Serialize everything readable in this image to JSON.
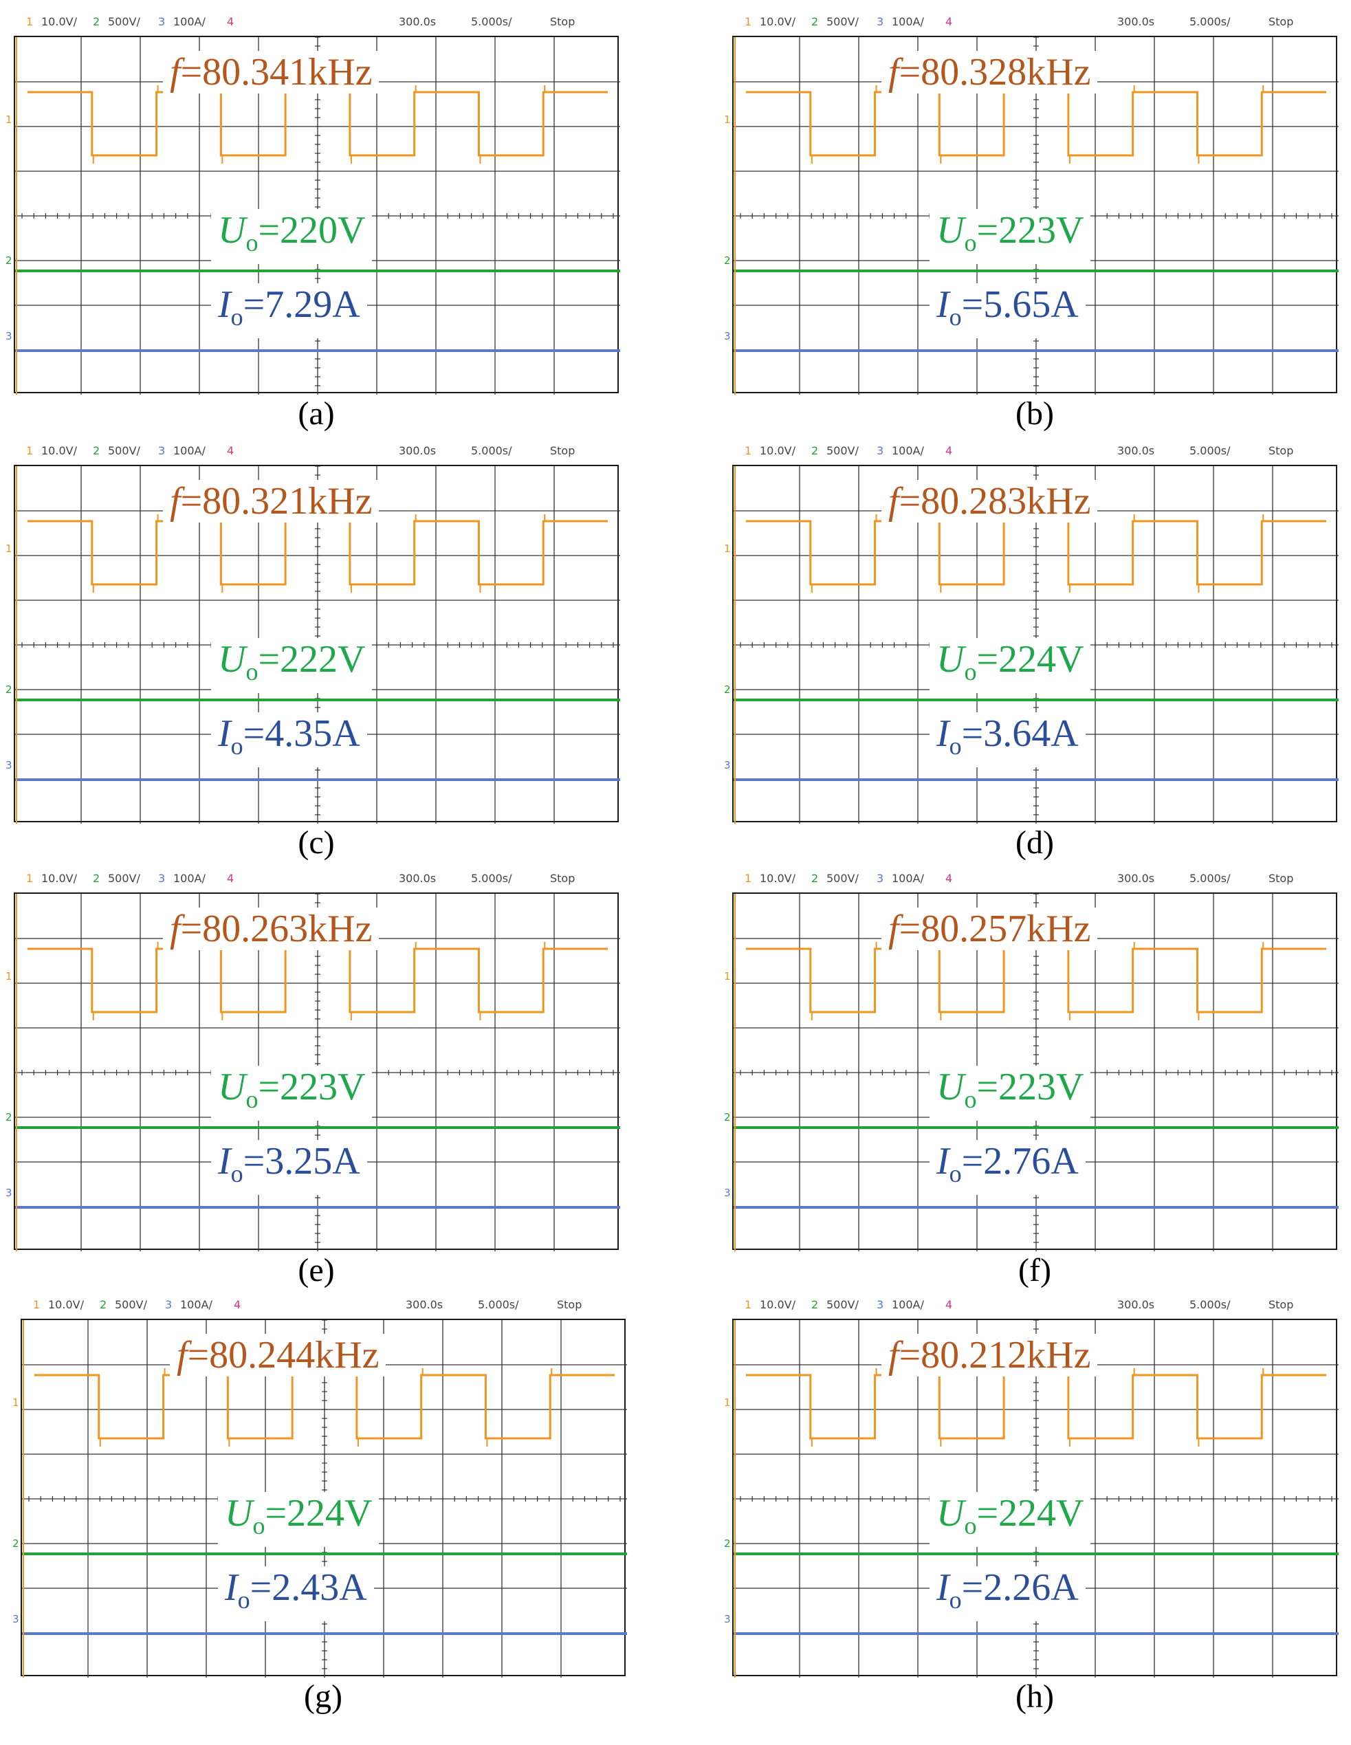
{
  "status_bar": {
    "ch1_num": "1",
    "ch1_scale": "10.0V/",
    "ch2_num": "2",
    "ch2_scale": "500V/",
    "ch3_num": "3",
    "ch3_scale": "100A/",
    "ch4_num": "4",
    "offset": "300.0s",
    "timebase": "5.000s/",
    "mode": "Stop"
  },
  "colors": {
    "ch1": "#f0951f",
    "ch2": "#22a33a",
    "ch3": "#5b79c9",
    "ch4": "#e0308a",
    "freq_label": "#b5561c",
    "volt_label": "#1fa84a",
    "curr_label": "#2b4e9a"
  },
  "symbols": {
    "f": "f",
    "u": "U",
    "i": "I",
    "sub": "o"
  },
  "panels": [
    {
      "caption": "(a)",
      "freq": "=80.341kHz",
      "volt": "=220V",
      "curr": "=7.29A"
    },
    {
      "caption": "(b)",
      "freq": "=80.328kHz",
      "volt": "=223V",
      "curr": "=5.65A"
    },
    {
      "caption": "(c)",
      "freq": "=80.321kHz",
      "volt": "=222V",
      "curr": "=4.35A"
    },
    {
      "caption": "(d)",
      "freq": "=80.283kHz",
      "volt": "=224V",
      "curr": "=3.64A"
    },
    {
      "caption": "(e)",
      "freq": "=80.263kHz",
      "volt": "=223V",
      "curr": "=3.25A"
    },
    {
      "caption": "(f)",
      "freq": "=80.257kHz",
      "volt": "=223V",
      "curr": "=2.76A"
    },
    {
      "caption": "(g)",
      "freq": "=80.244kHz",
      "volt": "=224V",
      "curr": "=2.43A"
    },
    {
      "caption": "(h)",
      "freq": "=80.212kHz",
      "volt": "=224V",
      "curr": "=2.26A"
    }
  ],
  "chart_data": [
    {
      "type": "line",
      "panel": "(a)",
      "series": [
        {
          "name": "f=80.341kHz",
          "values": [
            1,
            0,
            1,
            0,
            1,
            0,
            1,
            0,
            1
          ]
        },
        {
          "name": "Uo=220V",
          "values": [
            220
          ]
        },
        {
          "name": "Io=7.29A",
          "values": [
            7.29
          ]
        }
      ]
    },
    {
      "type": "line",
      "panel": "(b)",
      "series": [
        {
          "name": "f=80.328kHz",
          "values": [
            1,
            0,
            1,
            0,
            1,
            0,
            1,
            0,
            1
          ]
        },
        {
          "name": "Uo=223V",
          "values": [
            223
          ]
        },
        {
          "name": "Io=5.65A",
          "values": [
            5.65
          ]
        }
      ]
    },
    {
      "type": "line",
      "panel": "(c)",
      "series": [
        {
          "name": "f=80.321kHz",
          "values": [
            1,
            0,
            1,
            0,
            1,
            0,
            1,
            0,
            1
          ]
        },
        {
          "name": "Uo=222V",
          "values": [
            222
          ]
        },
        {
          "name": "Io=4.35A",
          "values": [
            4.35
          ]
        }
      ]
    },
    {
      "type": "line",
      "panel": "(d)",
      "series": [
        {
          "name": "f=80.283kHz",
          "values": [
            1,
            0,
            1,
            0,
            1,
            0,
            1,
            0,
            1
          ]
        },
        {
          "name": "Uo=224V",
          "values": [
            224
          ]
        },
        {
          "name": "Io=3.64A",
          "values": [
            3.64
          ]
        }
      ]
    },
    {
      "type": "line",
      "panel": "(e)",
      "series": [
        {
          "name": "f=80.263kHz",
          "values": [
            1,
            0,
            1,
            0,
            1,
            0,
            1,
            0,
            1
          ]
        },
        {
          "name": "Uo=223V",
          "values": [
            223
          ]
        },
        {
          "name": "Io=3.25A",
          "values": [
            3.25
          ]
        }
      ]
    },
    {
      "type": "line",
      "panel": "(f)",
      "series": [
        {
          "name": "f=80.257kHz",
          "values": [
            1,
            0,
            1,
            0,
            1,
            0,
            1,
            0,
            1
          ]
        },
        {
          "name": "Uo=223V",
          "values": [
            223
          ]
        },
        {
          "name": "Io=2.76A",
          "values": [
            2.76
          ]
        }
      ]
    },
    {
      "type": "line",
      "panel": "(g)",
      "series": [
        {
          "name": "f=80.244kHz",
          "values": [
            1,
            0,
            1,
            0,
            1,
            0,
            1,
            0,
            1
          ]
        },
        {
          "name": "Uo=224V",
          "values": [
            224
          ]
        },
        {
          "name": "Io=2.43A",
          "values": [
            2.43
          ]
        }
      ]
    },
    {
      "type": "line",
      "panel": "(h)",
      "series": [
        {
          "name": "f=80.212kHz",
          "values": [
            1,
            0,
            1,
            0,
            1,
            0,
            1,
            0,
            1
          ]
        },
        {
          "name": "Uo=224V",
          "values": [
            224
          ]
        },
        {
          "name": "Io=2.26A",
          "values": [
            2.26
          ]
        }
      ]
    }
  ]
}
